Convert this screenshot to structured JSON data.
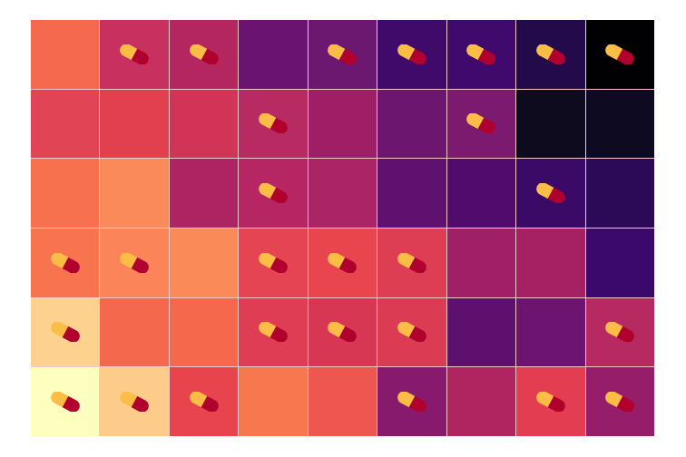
{
  "board": {
    "rows": 6,
    "cols": 9,
    "tiles": [
      [
        {
          "color": "#f5694f",
          "pill": false
        },
        {
          "color": "#c7305f",
          "pill": true
        },
        {
          "color": "#b3265f",
          "pill": true
        },
        {
          "color": "#6a1370",
          "pill": false
        },
        {
          "color": "#6c1770",
          "pill": true
        },
        {
          "color": "#400a6a",
          "pill": true
        },
        {
          "color": "#3f0a6c",
          "pill": true
        },
        {
          "color": "#230a4a",
          "pill": true
        },
        {
          "color": "#010002",
          "pill": true
        }
      ],
      [
        {
          "color": "#e14454",
          "pill": false
        },
        {
          "color": "#e2404f",
          "pill": false
        },
        {
          "color": "#d13457",
          "pill": false
        },
        {
          "color": "#b82b62",
          "pill": true
        },
        {
          "color": "#9f1f66",
          "pill": false
        },
        {
          "color": "#6d166f",
          "pill": false
        },
        {
          "color": "#7c1a70",
          "pill": true
        },
        {
          "color": "#0f0b1f",
          "pill": false
        },
        {
          "color": "#0d0a22",
          "pill": false
        }
      ],
      [
        {
          "color": "#f7714f",
          "pill": false
        },
        {
          "color": "#fb8a5b",
          "pill": false
        },
        {
          "color": "#ae2462",
          "pill": false
        },
        {
          "color": "#b52662",
          "pill": true
        },
        {
          "color": "#ab2465",
          "pill": false
        },
        {
          "color": "#5f1170",
          "pill": false
        },
        {
          "color": "#500b6d",
          "pill": false
        },
        {
          "color": "#3a0a66",
          "pill": true
        },
        {
          "color": "#2c0a58",
          "pill": false
        }
      ],
      [
        {
          "color": "#f8744f",
          "pill": true
        },
        {
          "color": "#fb8559",
          "pill": true
        },
        {
          "color": "#fb8a59",
          "pill": false
        },
        {
          "color": "#e54552",
          "pill": true
        },
        {
          "color": "#e8454f",
          "pill": true
        },
        {
          "color": "#dd3e53",
          "pill": true
        },
        {
          "color": "#a02067",
          "pill": false
        },
        {
          "color": "#a52164",
          "pill": false
        },
        {
          "color": "#3b086b",
          "pill": false
        }
      ],
      [
        {
          "color": "#fdd28f",
          "pill": true
        },
        {
          "color": "#f4684d",
          "pill": false
        },
        {
          "color": "#f5684c",
          "pill": false
        },
        {
          "color": "#df3d54",
          "pill": true
        },
        {
          "color": "#d83753",
          "pill": true
        },
        {
          "color": "#dc3c53",
          "pill": true
        },
        {
          "color": "#5e106e",
          "pill": false
        },
        {
          "color": "#6c1470",
          "pill": false
        },
        {
          "color": "#b62a61",
          "pill": true
        }
      ],
      [
        {
          "color": "#fcffbe",
          "pill": true
        },
        {
          "color": "#fdcc8a",
          "pill": true
        },
        {
          "color": "#e8444e",
          "pill": true
        },
        {
          "color": "#f7774f",
          "pill": false
        },
        {
          "color": "#ee5650",
          "pill": false
        },
        {
          "color": "#871a6d",
          "pill": true
        },
        {
          "color": "#b0245f",
          "pill": false
        },
        {
          "color": "#e33d51",
          "pill": true
        },
        {
          "color": "#961d6a",
          "pill": true
        }
      ]
    ]
  },
  "pill_colors": {
    "top": "#fcbd46",
    "bottom": "#b0002e"
  },
  "pill_icon": "capsule-pill-icon"
}
